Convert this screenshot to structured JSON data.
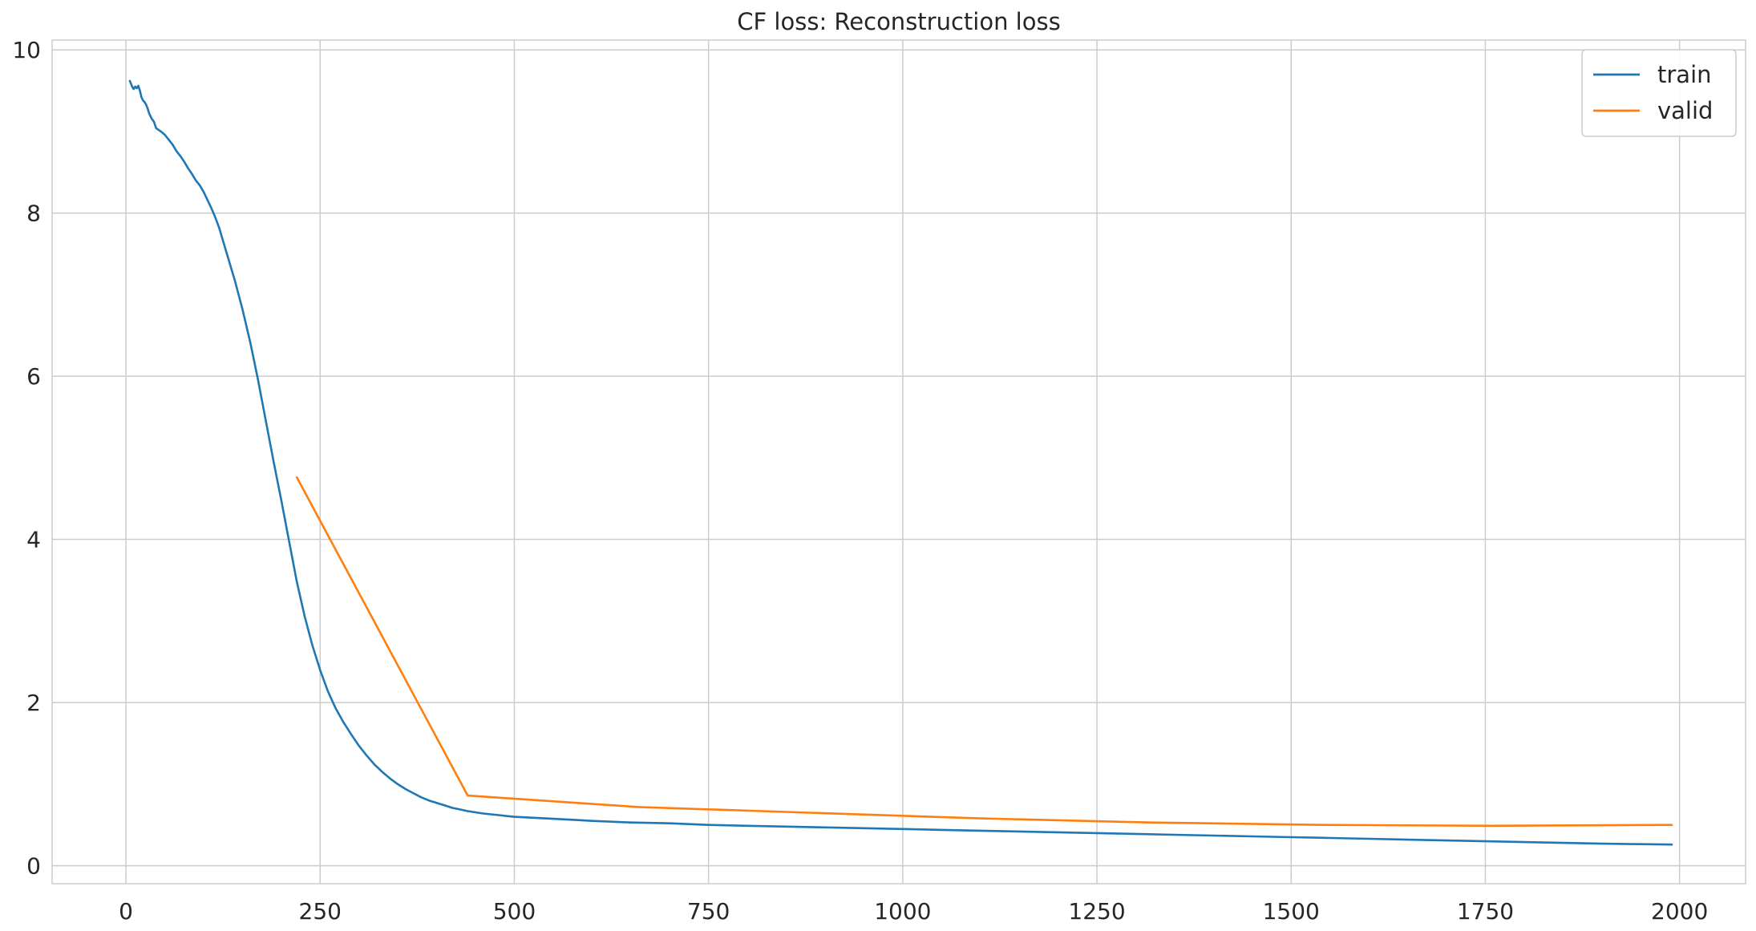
{
  "chart_data": {
    "type": "line",
    "title": "CF loss: Reconstruction loss",
    "xlabel": "",
    "ylabel": "",
    "xlim": [
      -95,
      2085
    ],
    "ylim": [
      -0.22,
      10.12
    ],
    "xticks": [
      0,
      250,
      500,
      750,
      1000,
      1250,
      1500,
      1750,
      2000
    ],
    "yticks": [
      0,
      2,
      4,
      6,
      8,
      10
    ],
    "grid": true,
    "legend_position": "top-right",
    "series": [
      {
        "name": "train",
        "color": "#1f77b4",
        "x": [
          5,
          8,
          10,
          12,
          14,
          16,
          18,
          20,
          22,
          24,
          26,
          28,
          30,
          33,
          36,
          39,
          42,
          45,
          50,
          55,
          60,
          65,
          70,
          75,
          80,
          85,
          90,
          95,
          100,
          105,
          110,
          115,
          120,
          125,
          130,
          135,
          140,
          150,
          160,
          170,
          180,
          190,
          200,
          210,
          220,
          230,
          240,
          250,
          260,
          270,
          280,
          290,
          300,
          310,
          320,
          330,
          340,
          350,
          360,
          370,
          380,
          390,
          400,
          410,
          420,
          430,
          440,
          460,
          480,
          500,
          520,
          540,
          560,
          580,
          600,
          650,
          700,
          750,
          800,
          850,
          900,
          950,
          1000,
          1050,
          1100,
          1150,
          1200,
          1250,
          1300,
          1350,
          1400,
          1450,
          1500,
          1550,
          1600,
          1650,
          1700,
          1750,
          1800,
          1850,
          1900,
          1950,
          1990
        ],
        "y": [
          9.62,
          9.55,
          9.52,
          9.55,
          9.53,
          9.56,
          9.5,
          9.42,
          9.38,
          9.36,
          9.33,
          9.28,
          9.22,
          9.16,
          9.12,
          9.04,
          9.02,
          9.0,
          8.96,
          8.9,
          8.84,
          8.76,
          8.7,
          8.63,
          8.55,
          8.48,
          8.4,
          8.34,
          8.26,
          8.16,
          8.06,
          7.95,
          7.82,
          7.66,
          7.5,
          7.34,
          7.18,
          6.82,
          6.42,
          5.96,
          5.46,
          4.96,
          4.48,
          3.98,
          3.48,
          3.06,
          2.7,
          2.4,
          2.14,
          1.93,
          1.76,
          1.61,
          1.47,
          1.35,
          1.24,
          1.15,
          1.07,
          1.0,
          0.94,
          0.89,
          0.84,
          0.8,
          0.77,
          0.74,
          0.71,
          0.69,
          0.67,
          0.64,
          0.62,
          0.6,
          0.59,
          0.58,
          0.57,
          0.56,
          0.55,
          0.53,
          0.52,
          0.5,
          0.49,
          0.48,
          0.47,
          0.46,
          0.45,
          0.44,
          0.43,
          0.42,
          0.41,
          0.4,
          0.39,
          0.38,
          0.37,
          0.36,
          0.35,
          0.34,
          0.33,
          0.32,
          0.31,
          0.3,
          0.29,
          0.28,
          0.27,
          0.265,
          0.26
        ]
      },
      {
        "name": "valid",
        "color": "#ff7f0e",
        "x": [
          220,
          440,
          660,
          880,
          1100,
          1320,
          1540,
          1760,
          1990
        ],
        "y": [
          4.76,
          0.86,
          0.72,
          0.65,
          0.58,
          0.53,
          0.5,
          0.49,
          0.5
        ]
      }
    ]
  }
}
